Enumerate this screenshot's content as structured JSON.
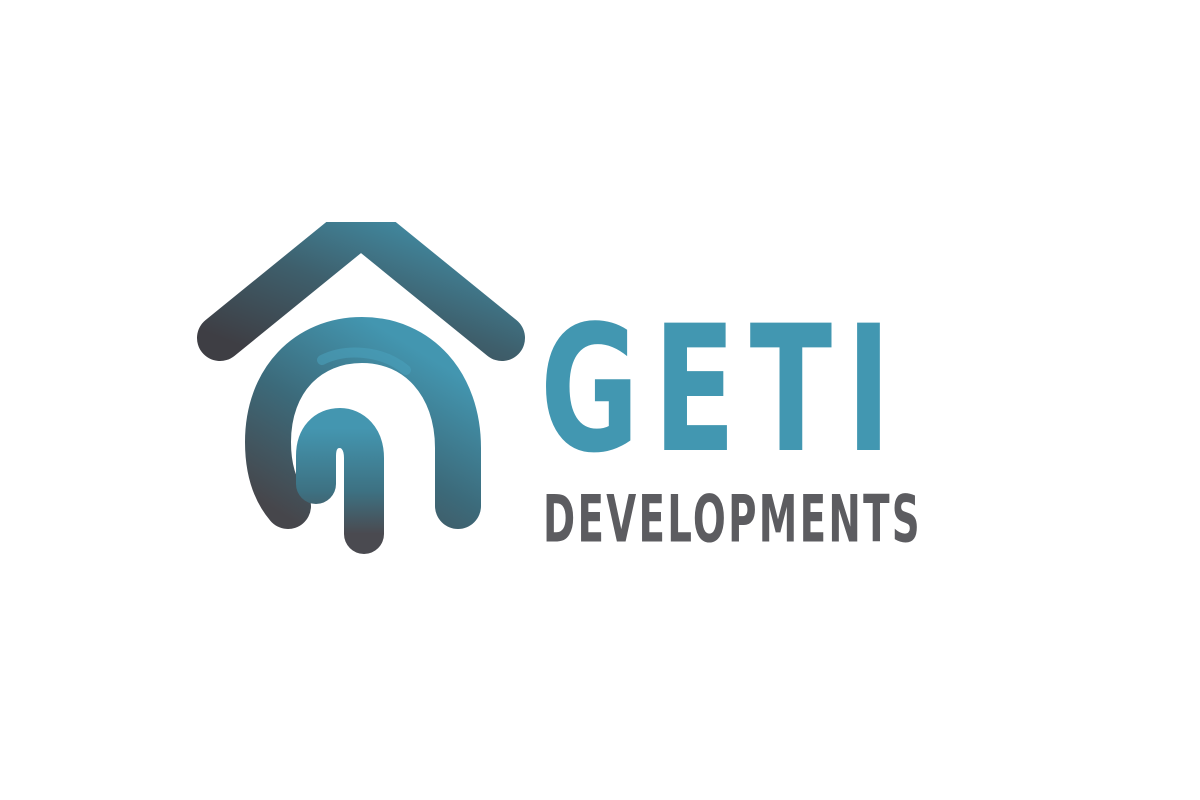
{
  "logo": {
    "brand_name": "GETI",
    "tagline": "DEVELOPMENTS",
    "icon": "house-arch-icon"
  },
  "colors": {
    "background": "#ffffff",
    "brand_teal": "#4297b1",
    "brand_charcoal": "#4a4a4f",
    "tagline_gray": "#5c5c60"
  }
}
